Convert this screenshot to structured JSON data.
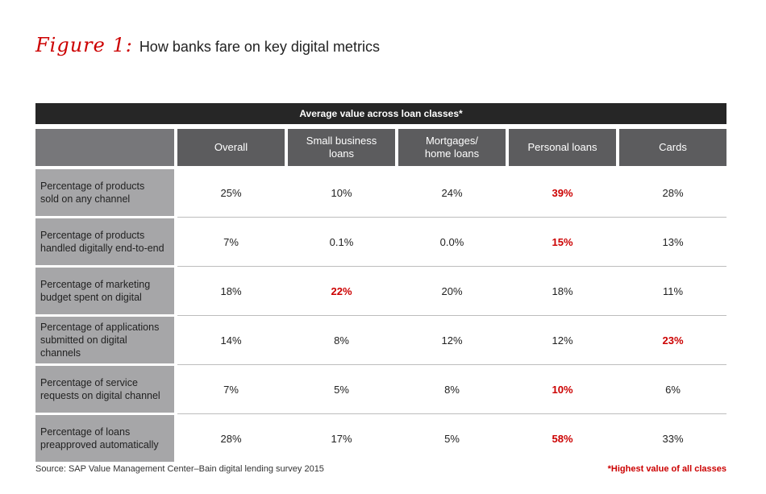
{
  "figure": {
    "label": "Figure 1:",
    "title": "How banks fare on key digital metrics"
  },
  "colors": {
    "accent": "#cc0000",
    "banner": "#262626",
    "header": "#5c5c5e",
    "row_header": "#a6a6a8"
  },
  "chart_data": {
    "type": "table",
    "title": "Average value across loan classes*",
    "columns": [
      "Overall",
      "Small business loans",
      "Mortgages/ home loans",
      "Personal loans",
      "Cards"
    ],
    "column_lines": [
      [
        "Overall"
      ],
      [
        "Small business",
        "loans"
      ],
      [
        "Mortgages/",
        "home loans"
      ],
      [
        "Personal loans"
      ],
      [
        "Cards"
      ]
    ],
    "rows": [
      {
        "label_lines": [
          "Percentage of products",
          "sold on any channel"
        ],
        "values": [
          "25%",
          "10%",
          "24%",
          "39%",
          "28%"
        ],
        "highlight": 3
      },
      {
        "label_lines": [
          "Percentage of products",
          "handled digitally end-to-end"
        ],
        "values": [
          "7%",
          "0.1%",
          "0.0%",
          "15%",
          "13%"
        ],
        "highlight": 3
      },
      {
        "label_lines": [
          "Percentage of marketing",
          "budget spent on digital"
        ],
        "values": [
          "18%",
          "22%",
          "20%",
          "18%",
          "11%"
        ],
        "highlight": 1
      },
      {
        "label_lines": [
          "Percentage of applications",
          "submitted on digital channels"
        ],
        "values": [
          "14%",
          "8%",
          "12%",
          "12%",
          "23%"
        ],
        "highlight": 4
      },
      {
        "label_lines": [
          "Percentage of service",
          "requests on digital channel"
        ],
        "values": [
          "7%",
          "5%",
          "8%",
          "10%",
          "6%"
        ],
        "highlight": 3
      },
      {
        "label_lines": [
          "Percentage of loans",
          "preapproved automatically"
        ],
        "values": [
          "28%",
          "17%",
          "5%",
          "58%",
          "33%"
        ],
        "highlight": 3
      }
    ]
  },
  "footer": {
    "source": "Source: SAP Value Management Center–Bain digital lending survey 2015",
    "note": "*Highest value of all classes"
  }
}
